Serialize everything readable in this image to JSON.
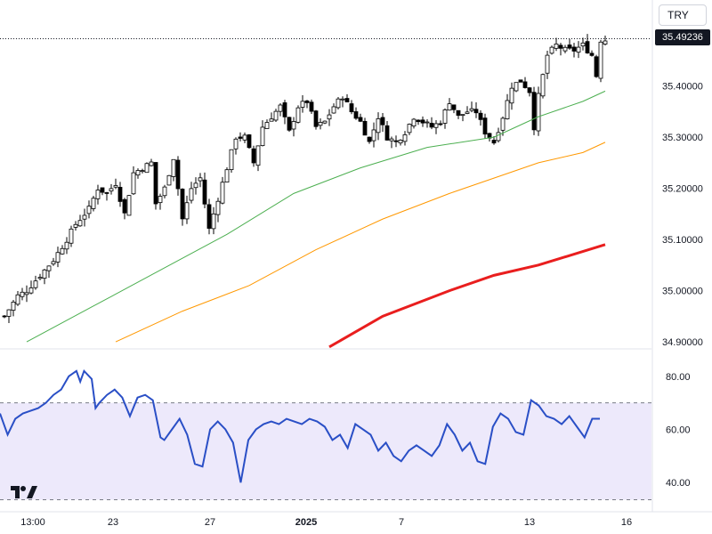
{
  "currency_button": "TRY",
  "last_price_label": "35.49236",
  "colors": {
    "up_candle": "#ffffff",
    "down_candle": "#000000",
    "candle_border": "#000000",
    "ma_short": "#4caf50",
    "ma_mid": "#ff9800",
    "ma_long": "#e91e1e",
    "rsi_line": "#2a4fc6",
    "rsi_band": "#ede9fb"
  },
  "chart_data": [
    {
      "type": "candlestick",
      "title": "",
      "price_axis_ticks": [
        "35.40000",
        "35.30000",
        "35.20000",
        "35.10000",
        "35.00000",
        "34.90000"
      ],
      "ylim": [
        34.888,
        35.495
      ],
      "x_tick_labels": [
        "13:00",
        "23",
        "27",
        "2025",
        "7",
        "13",
        "16"
      ],
      "last_price": 35.49236,
      "close_path_anchors": [
        [
          0,
          34.95
        ],
        [
          3,
          34.99
        ],
        [
          5,
          35.0
        ],
        [
          8,
          35.03
        ],
        [
          11,
          35.06
        ],
        [
          14,
          35.1
        ],
        [
          16,
          35.13
        ],
        [
          19,
          35.16
        ],
        [
          21,
          35.2
        ],
        [
          23,
          35.19
        ],
        [
          25,
          35.21
        ],
        [
          27,
          35.15
        ],
        [
          29,
          35.23
        ],
        [
          31,
          35.24
        ],
        [
          33,
          35.25
        ],
        [
          34,
          35.17
        ],
        [
          36,
          35.2
        ],
        [
          38,
          35.26
        ],
        [
          40,
          35.14
        ],
        [
          42,
          35.2
        ],
        [
          44,
          35.22
        ],
        [
          46,
          35.12
        ],
        [
          48,
          35.18
        ],
        [
          50,
          35.24
        ],
        [
          52,
          35.3
        ],
        [
          54,
          35.3
        ],
        [
          56,
          35.25
        ],
        [
          58,
          35.32
        ],
        [
          60,
          35.34
        ],
        [
          62,
          35.36
        ],
        [
          64,
          35.31
        ],
        [
          66,
          35.36
        ],
        [
          68,
          35.37
        ],
        [
          70,
          35.32
        ],
        [
          72,
          35.33
        ],
        [
          74,
          35.36
        ],
        [
          76,
          35.38
        ],
        [
          78,
          35.35
        ],
        [
          80,
          35.33
        ],
        [
          82,
          35.29
        ],
        [
          84,
          35.34
        ],
        [
          86,
          35.3
        ],
        [
          88,
          35.29
        ],
        [
          90,
          35.31
        ],
        [
          92,
          35.34
        ],
        [
          94,
          35.33
        ],
        [
          96,
          35.32
        ],
        [
          98,
          35.33
        ],
        [
          100,
          35.37
        ],
        [
          102,
          35.34
        ],
        [
          104,
          35.35
        ],
        [
          106,
          35.35
        ],
        [
          108,
          35.31
        ],
        [
          110,
          35.29
        ],
        [
          112,
          35.34
        ],
        [
          114,
          35.4
        ],
        [
          116,
          35.41
        ],
        [
          118,
          35.39
        ],
        [
          119,
          35.32
        ],
        [
          120,
          35.38
        ],
        [
          122,
          35.46
        ],
        [
          124,
          35.48
        ],
        [
          126,
          35.47
        ],
        [
          128,
          35.47
        ],
        [
          130,
          35.48
        ],
        [
          132,
          35.46
        ],
        [
          133,
          35.42
        ],
        [
          134,
          35.49
        ],
        [
          135,
          35.49
        ]
      ],
      "moving_averages": [
        {
          "name": "",
          "color": "#4caf50",
          "points": [
            [
              5,
              34.9
            ],
            [
              20,
              34.97
            ],
            [
              35,
              35.04
            ],
            [
              50,
              35.11
            ],
            [
              65,
              35.19
            ],
            [
              80,
              35.24
            ],
            [
              95,
              35.28
            ],
            [
              110,
              35.3
            ],
            [
              120,
              35.34
            ],
            [
              130,
              35.37
            ],
            [
              135,
              35.39
            ]
          ]
        },
        {
          "name": "",
          "color": "#ff9800",
          "points": [
            [
              25,
              34.9
            ],
            [
              40,
              34.96
            ],
            [
              55,
              35.01
            ],
            [
              70,
              35.08
            ],
            [
              85,
              35.14
            ],
            [
              100,
              35.19
            ],
            [
              110,
              35.22
            ],
            [
              120,
              35.25
            ],
            [
              130,
              35.27
            ],
            [
              135,
              35.29
            ]
          ]
        },
        {
          "name": "",
          "color": "#e91e1e",
          "points": [
            [
              73,
              34.89
            ],
            [
              85,
              34.95
            ],
            [
              100,
              35.0
            ],
            [
              110,
              35.03
            ],
            [
              120,
              35.05
            ],
            [
              135,
              35.09
            ]
          ]
        }
      ]
    },
    {
      "type": "line",
      "title": "",
      "ylim": [
        32,
        90
      ],
      "ticks": [
        "80.00",
        "60.00",
        "40.00"
      ],
      "band": [
        33.5,
        70
      ],
      "series": [
        {
          "name": "",
          "color": "#2a4fc6",
          "points": [
            [
              0,
              66
            ],
            [
              2,
              58
            ],
            [
              4,
              64
            ],
            [
              6,
              66
            ],
            [
              8,
              67
            ],
            [
              10,
              68
            ],
            [
              12,
              70
            ],
            [
              14,
              73
            ],
            [
              16,
              75
            ],
            [
              18,
              80
            ],
            [
              20,
              82
            ],
            [
              21,
              78
            ],
            [
              22,
              82
            ],
            [
              24,
              79
            ],
            [
              25,
              68
            ],
            [
              26,
              70
            ],
            [
              28,
              73
            ],
            [
              30,
              75
            ],
            [
              32,
              72
            ],
            [
              34,
              65
            ],
            [
              36,
              72
            ],
            [
              38,
              73
            ],
            [
              40,
              71
            ],
            [
              42,
              57
            ],
            [
              43,
              56
            ],
            [
              45,
              60
            ],
            [
              47,
              64
            ],
            [
              49,
              58
            ],
            [
              51,
              47
            ],
            [
              53,
              46
            ],
            [
              55,
              60
            ],
            [
              57,
              63
            ],
            [
              59,
              60
            ],
            [
              61,
              55
            ],
            [
              63,
              40
            ],
            [
              65,
              56
            ],
            [
              67,
              60
            ],
            [
              69,
              62
            ],
            [
              71,
              63
            ],
            [
              73,
              62
            ],
            [
              75,
              64
            ],
            [
              77,
              63
            ],
            [
              79,
              62
            ],
            [
              81,
              64
            ],
            [
              83,
              63
            ],
            [
              85,
              61
            ],
            [
              87,
              56
            ],
            [
              89,
              58
            ],
            [
              91,
              53
            ],
            [
              93,
              62
            ],
            [
              95,
              60
            ],
            [
              97,
              58
            ],
            [
              99,
              52
            ],
            [
              101,
              55
            ],
            [
              103,
              50
            ],
            [
              105,
              48
            ],
            [
              107,
              52
            ],
            [
              109,
              54
            ],
            [
              111,
              52
            ],
            [
              113,
              50
            ],
            [
              115,
              54
            ],
            [
              117,
              62
            ],
            [
              119,
              58
            ],
            [
              121,
              52
            ],
            [
              123,
              55
            ],
            [
              125,
              48
            ],
            [
              127,
              47
            ],
            [
              129,
              61
            ],
            [
              131,
              66
            ],
            [
              133,
              64
            ],
            [
              135,
              59
            ],
            [
              137,
              58
            ],
            [
              139,
              71
            ],
            [
              141,
              69
            ],
            [
              143,
              65
            ],
            [
              145,
              64
            ],
            [
              147,
              62
            ],
            [
              149,
              65
            ],
            [
              151,
              61
            ],
            [
              153,
              57
            ],
            [
              155,
              64
            ],
            [
              157,
              64
            ]
          ]
        }
      ]
    }
  ]
}
